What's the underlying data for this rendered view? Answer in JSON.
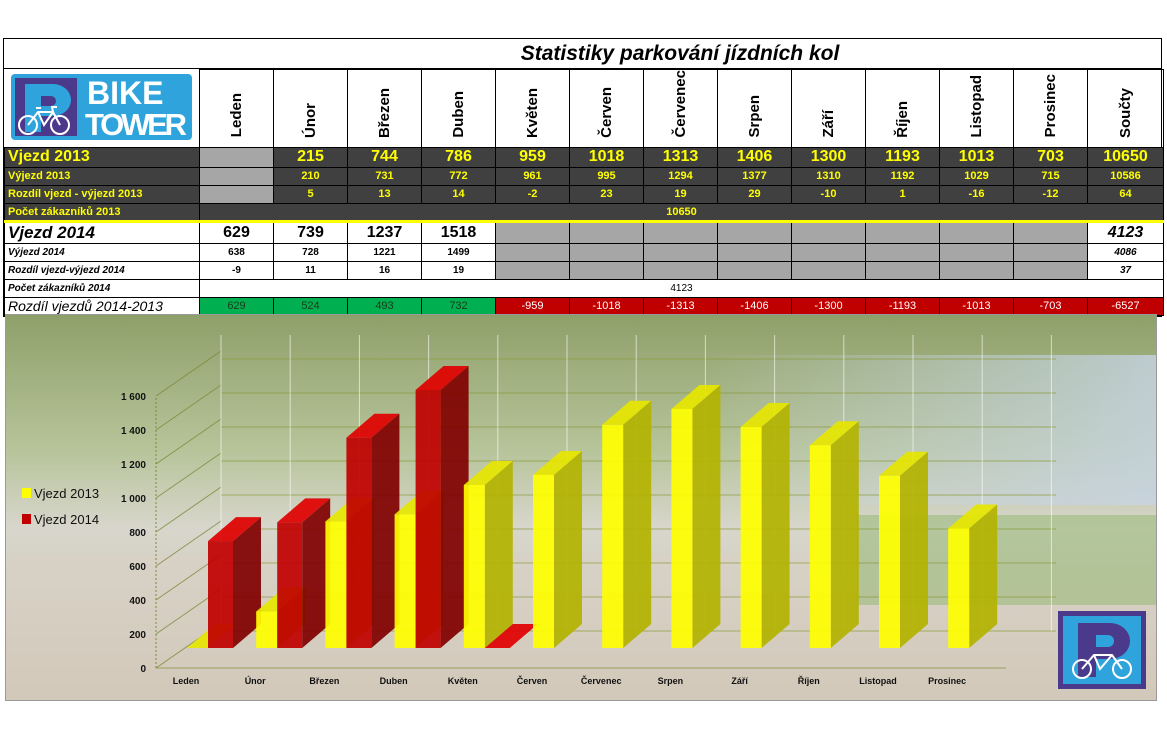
{
  "title": "Statistiky parkování jízdních kol",
  "logo": {
    "text_top": "BIKE",
    "text_bottom": "TOWER",
    "letter": "P",
    "brand_blue": "#2ea3dc",
    "brand_purple": "#4b3a8c"
  },
  "months": [
    "Leden",
    "Únor",
    "Březen",
    "Duben",
    "Květen",
    "Červen",
    "Červenec",
    "Srpen",
    "Září",
    "Říjen",
    "Listopad",
    "Prosinec"
  ],
  "total_header": "Součty",
  "rows": [
    {
      "label": "Vjezd 2013",
      "values": [
        null,
        215,
        744,
        786,
        959,
        1018,
        1313,
        1406,
        1300,
        1193,
        1013,
        703
      ],
      "total": 10650
    },
    {
      "label": "Výjezd 2013",
      "values": [
        null,
        210,
        731,
        772,
        961,
        995,
        1294,
        1377,
        1310,
        1192,
        1029,
        715
      ],
      "total": 10586
    },
    {
      "label": "Rozdíl vjezd - výjezd 2013",
      "values": [
        null,
        5,
        13,
        14,
        -2,
        23,
        19,
        29,
        -10,
        1,
        -16,
        -12
      ],
      "total": 64
    },
    {
      "label": "Počet zákazníků 2013",
      "merged": 10650
    },
    {
      "label": "Vjezd 2014",
      "values": [
        629,
        739,
        1237,
        1518,
        null,
        null,
        null,
        null,
        null,
        null,
        null,
        null
      ],
      "total": 4123
    },
    {
      "label": "Výjezd 2014",
      "values": [
        638,
        728,
        1221,
        1499,
        null,
        null,
        null,
        null,
        null,
        null,
        null,
        null
      ],
      "total": 4086
    },
    {
      "label": "Rozdíl vjezd-výjezd 2014",
      "values": [
        -9,
        11,
        16,
        19,
        null,
        null,
        null,
        null,
        null,
        null,
        null,
        null
      ],
      "total": 37
    },
    {
      "label": "Počet zákazníků 2014",
      "merged": 4123
    },
    {
      "label": "Rozdíl vjezdů 2014-2013",
      "values": [
        629,
        524,
        493,
        732,
        -959,
        -1018,
        -1313,
        -1406,
        -1300,
        -1193,
        -1013,
        -703
      ],
      "total": -6527
    }
  ],
  "colors": {
    "dark_row": "#404040",
    "dark_text": "#ffff00",
    "empty_cell": "#a6a6a6",
    "positive": "#00b050",
    "negative": "#c00000"
  },
  "chart_data": {
    "type": "bar",
    "style": "3d-clustered-column",
    "categories": [
      "Leden",
      "Únor",
      "Březen",
      "Duben",
      "Květen",
      "Červen",
      "Červenec",
      "Srpen",
      "Září",
      "Říjen",
      "Listopad",
      "Prosinec"
    ],
    "series": [
      {
        "name": "Vjezd 2013",
        "color": "#ffff00",
        "values": [
          0,
          215,
          744,
          786,
          959,
          1018,
          1313,
          1406,
          1300,
          1193,
          1013,
          703
        ]
      },
      {
        "name": "Vjezd 2014",
        "color": "#c00000",
        "values": [
          629,
          739,
          1237,
          1518,
          0,
          null,
          null,
          null,
          null,
          null,
          null,
          null
        ]
      }
    ],
    "yticks": [
      "0",
      "200",
      "400",
      "600",
      "800",
      "1 000",
      "1 200",
      "1 400",
      "1 600"
    ],
    "ylim": [
      0,
      1600
    ],
    "grid": true,
    "legend": "left"
  }
}
